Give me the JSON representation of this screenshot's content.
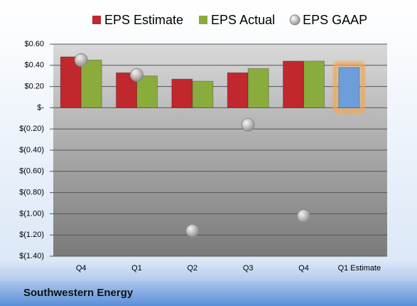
{
  "chart_data": {
    "type": "bar",
    "categories": [
      "Q4",
      "Q1",
      "Q2",
      "Q3",
      "Q4",
      "Q1 Estimate"
    ],
    "series": [
      {
        "name": "EPS Estimate",
        "color": "#c0282d",
        "values": [
          0.48,
          0.33,
          0.27,
          0.33,
          0.44,
          0.38
        ],
        "colors": [
          "#c0282d",
          "#c0282d",
          "#c0282d",
          "#c0282d",
          "#c0282d",
          "#6d9eda"
        ]
      },
      {
        "name": "EPS Actual",
        "color": "#8aac3c",
        "values": [
          0.45,
          0.3,
          0.25,
          0.37,
          0.44,
          null
        ]
      },
      {
        "name": "EPS GAAP",
        "color": "#a6a6a6",
        "marker": "bubble",
        "values": [
          0.45,
          0.31,
          -1.16,
          -0.16,
          -1.02,
          null
        ]
      }
    ],
    "ylim": [
      -1.4,
      0.6
    ],
    "yticks": [
      {
        "value": 0.6,
        "label": "$0.60"
      },
      {
        "value": 0.4,
        "label": "$0.40"
      },
      {
        "value": 0.2,
        "label": "$0.20"
      },
      {
        "value": 0,
        "label": "$-"
      },
      {
        "value": -0.2,
        "label": "$(0.20)"
      },
      {
        "value": -0.4,
        "label": "$(0.40)"
      },
      {
        "value": -0.6,
        "label": "$(0.60)"
      },
      {
        "value": -0.8,
        "label": "$(0.80)"
      },
      {
        "value": -1.0,
        "label": "$(1.00)"
      },
      {
        "value": -1.2,
        "label": "$(1.20)"
      },
      {
        "value": -1.4,
        "label": "$(1.40)"
      }
    ],
    "grid": true,
    "legend": "top",
    "footer": "Southwestern Energy"
  }
}
